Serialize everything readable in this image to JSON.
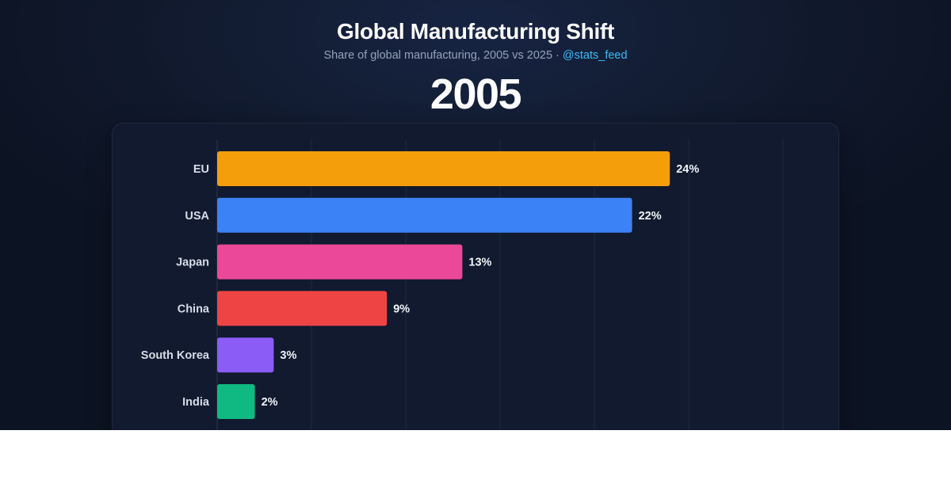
{
  "header": {
    "title": "Global Manufacturing Shift",
    "subtitle": "Share of global manufacturing, 2005 vs 2025 ·",
    "handle": "@stats_feed",
    "year": "2005"
  },
  "colors": {
    "background": "#111a2e",
    "handle": "#38bdf8"
  },
  "chart_data": {
    "type": "bar",
    "orientation": "horizontal",
    "title": "Global Manufacturing Shift",
    "subtitle": "Share of global manufacturing, 2005 vs 2025",
    "period": "2005",
    "categories": [
      "EU",
      "USA",
      "Japan",
      "China",
      "South Korea",
      "India"
    ],
    "values": [
      24,
      22,
      13,
      9,
      3,
      2
    ],
    "value_labels": [
      "24%",
      "22%",
      "13%",
      "9%",
      "3%",
      "2%"
    ],
    "bar_colors": [
      "#f59e0b",
      "#3b82f6",
      "#ec4899",
      "#ef4444",
      "#8b5cf6",
      "#10b981"
    ],
    "xlim": [
      0,
      30
    ],
    "grid": true,
    "unit": "%"
  }
}
